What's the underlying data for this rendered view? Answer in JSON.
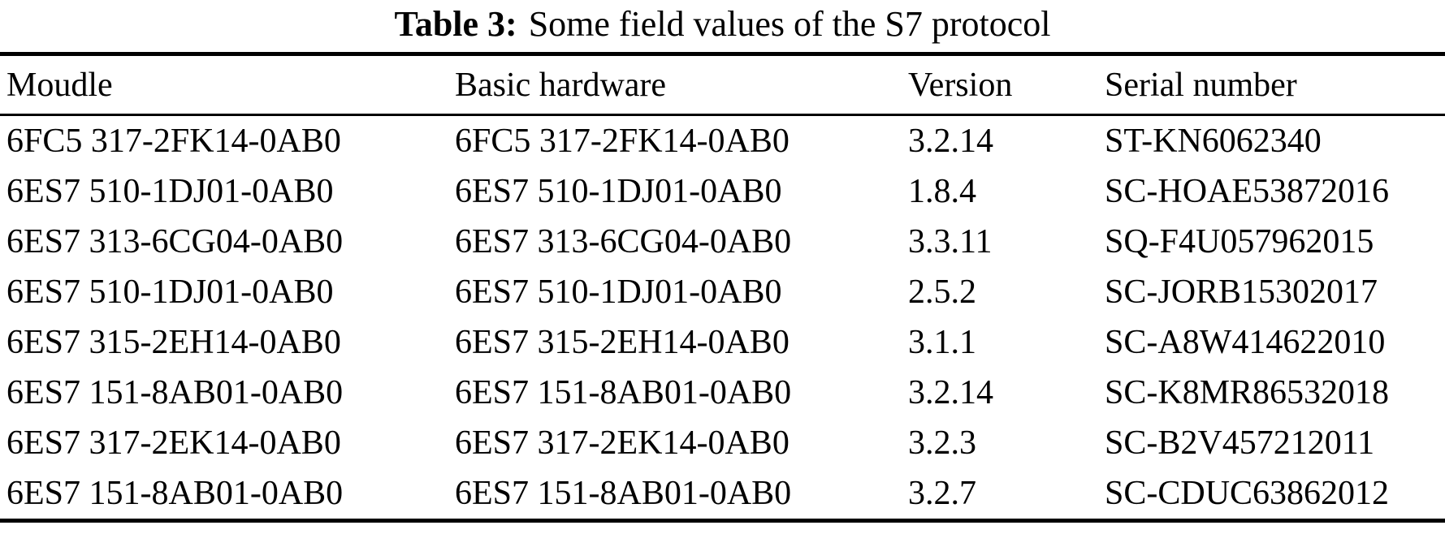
{
  "caption": {
    "label": "Table 3:",
    "text": "Some field values of the S7 protocol"
  },
  "table": {
    "columns": [
      "Moudle",
      "Basic hardware",
      "Version",
      "Serial number"
    ],
    "rows": [
      [
        "6FC5 317-2FK14-0AB0",
        "6FC5 317-2FK14-0AB0",
        "3.2.14",
        "ST-KN6062340"
      ],
      [
        "6ES7 510-1DJ01-0AB0",
        "6ES7 510-1DJ01-0AB0",
        "1.8.4",
        "SC-HOAE53872016"
      ],
      [
        "6ES7 313-6CG04-0AB0",
        "6ES7 313-6CG04-0AB0",
        "3.3.11",
        "SQ-F4U057962015"
      ],
      [
        "6ES7 510-1DJ01-0AB0",
        "6ES7 510-1DJ01-0AB0",
        "2.5.2",
        "SC-JORB15302017"
      ],
      [
        "6ES7 315-2EH14-0AB0",
        "6ES7 315-2EH14-0AB0",
        "3.1.1",
        "SC-A8W414622010"
      ],
      [
        "6ES7 151-8AB01-0AB0",
        "6ES7 151-8AB01-0AB0",
        "3.2.14",
        "SC-K8MR86532018"
      ],
      [
        "6ES7 317-2EK14-0AB0",
        "6ES7 317-2EK14-0AB0",
        "3.2.3",
        "SC-B2V457212011"
      ],
      [
        "6ES7 151-8AB01-0AB0",
        "6ES7 151-8AB01-0AB0",
        "3.2.7",
        "SC-CDUC63862012"
      ]
    ]
  },
  "colors": {
    "text": "#000000",
    "background": "#ffffff",
    "rule": "#000000"
  }
}
